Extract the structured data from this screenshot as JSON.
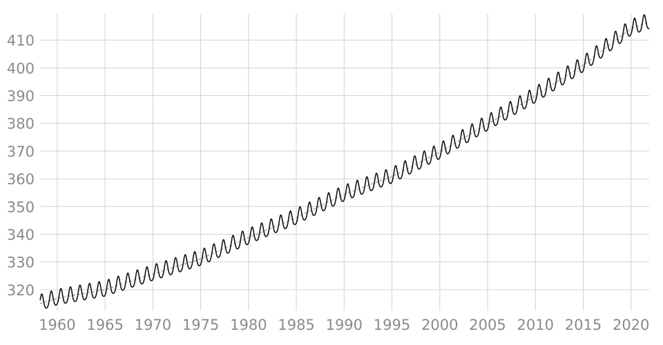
{
  "chart_data": {
    "type": "line",
    "title": "",
    "xlabel": "",
    "ylabel": "",
    "xlim": [
      1958.2,
      2021.9
    ],
    "ylim": [
      312.5,
      419.5
    ],
    "x_ticks": [
      1960,
      1965,
      1970,
      1975,
      1980,
      1985,
      1990,
      1995,
      2000,
      2005,
      2010,
      2015,
      2020
    ],
    "x_tick_labels": [
      "1960",
      "1965",
      "1970",
      "1975",
      "1980",
      "1985",
      "1990",
      "1995",
      "2000",
      "2005",
      "2010",
      "2015",
      "2020"
    ],
    "y_ticks": [
      320,
      330,
      340,
      350,
      360,
      370,
      380,
      390,
      400,
      410
    ],
    "y_tick_labels": [
      "320",
      "330",
      "340",
      "350",
      "360",
      "370",
      "380",
      "390",
      "400",
      "410"
    ],
    "grid": true,
    "legend": "none",
    "series": [
      {
        "style": "solid",
        "color": "#111111",
        "x_start": 1958.21,
        "x_end": 2021.92,
        "seasonal_amplitude": 3.3,
        "seasonal_peak_month": "May",
        "x": [
          1958.5,
          1960,
          1965,
          1970,
          1975,
          1980,
          1985,
          1990,
          1995,
          2000,
          2005,
          2010,
          2015,
          2020,
          2021.9
        ],
        "values": [
          315.3,
          316.9,
          320.0,
          325.7,
          331.1,
          338.8,
          346.0,
          354.4,
          360.8,
          369.6,
          379.8,
          389.9,
          401.0,
          414.2,
          416.5
        ]
      },
      {
        "style": "dashed",
        "color": "#888888",
        "x": [
          1958.5,
          1960,
          1965,
          1970,
          1975,
          1980,
          1985,
          1990,
          1995,
          2000,
          2005,
          2010,
          2015,
          2020,
          2021.9
        ],
        "values": [
          315.3,
          316.9,
          320.0,
          325.7,
          331.1,
          338.8,
          346.0,
          354.4,
          360.8,
          369.6,
          379.8,
          389.9,
          401.0,
          414.2,
          416.5
        ]
      }
    ]
  },
  "colors": {
    "grid": "#d0d0d0",
    "tick_text": "#8a8a8a",
    "line": "#111111",
    "trend": "#888888"
  }
}
